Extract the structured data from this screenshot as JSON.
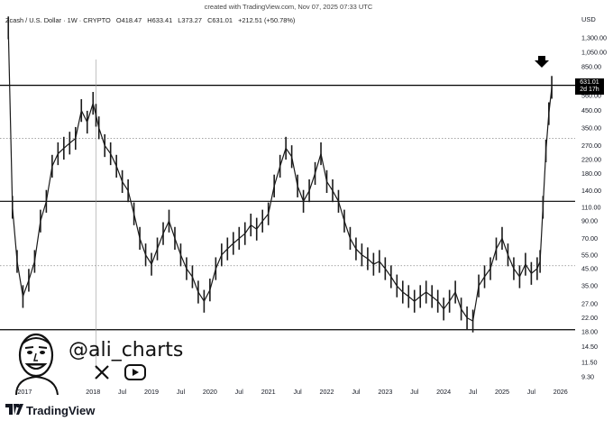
{
  "header": {
    "note": "created with TradingView.com, Nov 07, 2025 07:33 UTC",
    "symbol": "Zcash / U.S. Dollar · 1W · CRYPTO",
    "open": "O418.47",
    "high": "H633.41",
    "low": "L373.27",
    "close": "C631.01",
    "change": "+212.51 (+50.78%)"
  },
  "price_tag": {
    "price": "631.01",
    "countdown": "2d 17h"
  },
  "watermark": {
    "handle": "@ali_charts",
    "x_icon": "x-logo-icon",
    "youtube_icon": "youtube-icon"
  },
  "brand": {
    "name": "TradingView",
    "logo_icon": "tradingview-logo-icon"
  },
  "colors": {
    "candle": "#1a1a1a",
    "line": "#000000",
    "dotted": "#888888",
    "tag": "#000000"
  },
  "chart_data": {
    "type": "line",
    "title": "",
    "currency_label": "USD",
    "y_scale": "log",
    "ylim": [
      8.5,
      1600
    ],
    "y_ticks": [
      "1,300.00",
      "1,050.00",
      "850.00",
      "690.00",
      "560.00",
      "450.00",
      "350.00",
      "270.00",
      "220.00",
      "180.00",
      "140.00",
      "110.00",
      "90.00",
      "70.00",
      "55.00",
      "45.00",
      "35.00",
      "27.00",
      "22.00",
      "18.00",
      "14.50",
      "11.50",
      "9.30"
    ],
    "x_ticks": [
      "2017",
      "2018",
      "Jul",
      "2019",
      "Jul",
      "2020",
      "Jul",
      "2021",
      "Jul",
      "2022",
      "Jul",
      "2023",
      "Jul",
      "2024",
      "Jul",
      "2025",
      "Jul",
      "2026"
    ],
    "x_tick_values": [
      2016.83,
      2018.0,
      2018.5,
      2019.0,
      2019.5,
      2020.0,
      2020.5,
      2021.0,
      2021.5,
      2022.0,
      2022.5,
      2023.0,
      2023.5,
      2024.0,
      2024.5,
      2025.0,
      2025.5,
      2026.0
    ],
    "xlim": [
      2016.5,
      2026.25
    ],
    "horizontal_levels": [
      {
        "price": 650,
        "style": "solid"
      },
      {
        "price": 300,
        "style": "dotted"
      },
      {
        "price": 120,
        "style": "solid"
      },
      {
        "price": 47,
        "style": "dotted"
      },
      {
        "price": 18.5,
        "style": "solid"
      }
    ],
    "series": [
      {
        "x": [
          2016.55,
          2016.62,
          2016.7,
          2016.8,
          2016.9,
          2017.0,
          2017.1,
          2017.2,
          2017.3,
          2017.4,
          2017.5,
          2017.6,
          2017.7,
          2017.8,
          2017.9,
          2018.0,
          2018.05,
          2018.1,
          2018.2,
          2018.3,
          2018.4,
          2018.5,
          2018.6,
          2018.7,
          2018.8,
          2018.9,
          2019.0,
          2019.1,
          2019.2,
          2019.3,
          2019.4,
          2019.5,
          2019.6,
          2019.7,
          2019.8,
          2019.9,
          2020.0,
          2020.1,
          2020.2,
          2020.3,
          2020.4,
          2020.5,
          2020.6,
          2020.7,
          2020.8,
          2020.9,
          2021.0,
          2021.1,
          2021.2,
          2021.3,
          2021.4,
          2021.5,
          2021.6,
          2021.7,
          2021.8,
          2021.9,
          2022.0,
          2022.1,
          2022.2,
          2022.3,
          2022.4,
          2022.5,
          2022.6,
          2022.7,
          2022.8,
          2022.9,
          2023.0,
          2023.1,
          2023.2,
          2023.3,
          2023.4,
          2023.5,
          2023.6,
          2023.7,
          2023.8,
          2023.9,
          2024.0,
          2024.1,
          2024.2,
          2024.3,
          2024.4,
          2024.5,
          2024.6,
          2024.7,
          2024.8,
          2024.9,
          2025.0,
          2025.1,
          2025.2,
          2025.3,
          2025.4,
          2025.5,
          2025.6,
          2025.65,
          2025.7,
          2025.75,
          2025.8,
          2025.85
        ],
        "values": [
          1500,
          110,
          50,
          30,
          38,
          50,
          90,
          120,
          200,
          240,
          260,
          280,
          300,
          450,
          380,
          500,
          420,
          350,
          270,
          240,
          200,
          160,
          140,
          100,
          70,
          55,
          48,
          60,
          75,
          90,
          70,
          55,
          45,
          40,
          32,
          28,
          33,
          45,
          55,
          60,
          65,
          70,
          75,
          85,
          80,
          90,
          100,
          150,
          200,
          260,
          230,
          150,
          120,
          140,
          180,
          240,
          160,
          140,
          120,
          90,
          70,
          60,
          55,
          52,
          48,
          50,
          45,
          40,
          35,
          32,
          30,
          28,
          30,
          32,
          30,
          28,
          25,
          28,
          32,
          25,
          22,
          21,
          35,
          40,
          45,
          60,
          70,
          55,
          45,
          40,
          48,
          42,
          45,
          50,
          110,
          250,
          430,
          631.01
        ]
      }
    ]
  }
}
